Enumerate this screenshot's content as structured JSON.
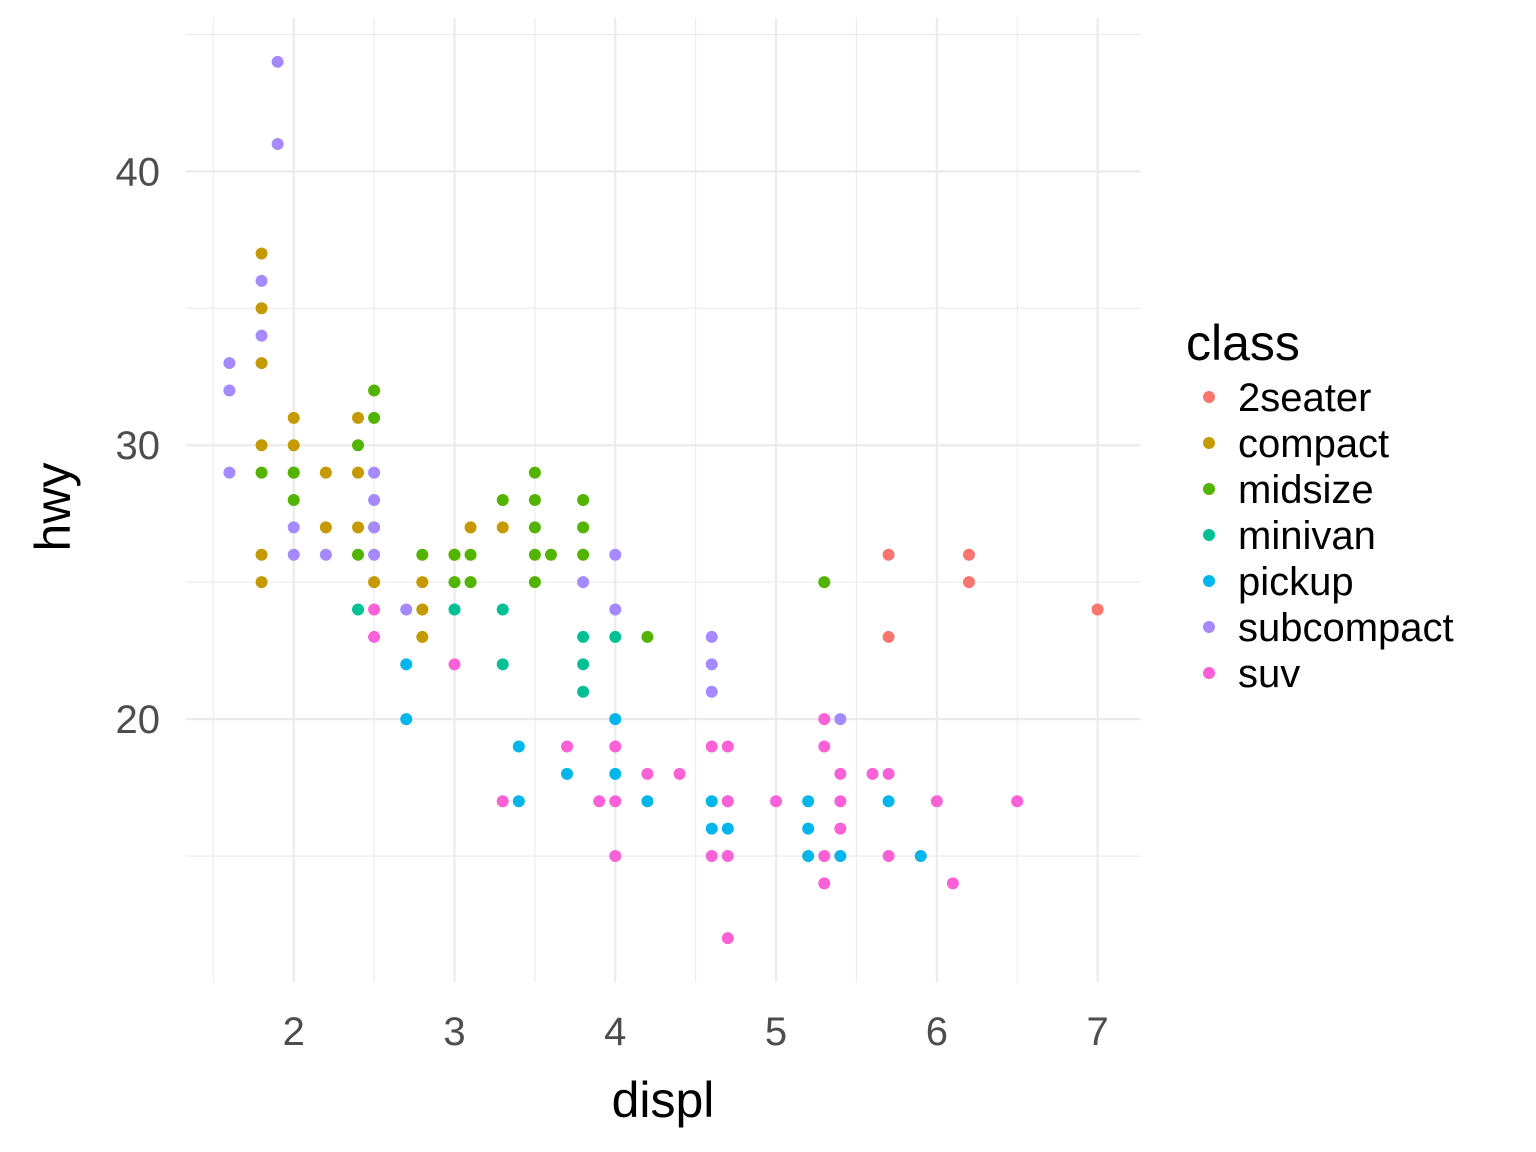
{
  "chart_data": {
    "type": "scatter",
    "title": "",
    "xlabel": "displ",
    "ylabel": "hwy",
    "xlim": [
      1.33,
      7.27
    ],
    "ylim": [
      10.4,
      45.6
    ],
    "x_major_ticks": [
      2,
      3,
      4,
      5,
      6,
      7
    ],
    "x_tick_labels": [
      "2",
      "3",
      "4",
      "5",
      "6",
      "7"
    ],
    "x_minor_ticks": [
      1.5,
      2.5,
      3.5,
      4.5,
      5.5,
      6.5
    ],
    "y_major_ticks": [
      20,
      30,
      40
    ],
    "y_tick_labels": [
      "20",
      "30",
      "40"
    ],
    "y_minor_ticks": [
      15,
      25,
      35,
      45
    ],
    "grid": true,
    "legend": {
      "title": "class",
      "placement": "right"
    },
    "series": [
      {
        "name": "2seater",
        "color": "#F8766D",
        "x": [
          5.7,
          5.7,
          6.2,
          6.2,
          7.0
        ],
        "y": [
          26,
          23,
          26,
          25,
          24
        ]
      },
      {
        "name": "compact",
        "color": "#C49A00",
        "x": [
          1.8,
          1.8,
          1.8,
          1.8,
          1.8,
          1.8,
          2.0,
          2.0,
          2.0,
          2.2,
          2.2,
          2.4,
          2.4,
          2.4,
          2.5,
          2.5,
          2.8,
          2.8,
          2.8,
          3.0,
          3.1,
          3.3
        ],
        "y": [
          37,
          35,
          33,
          30,
          26,
          25,
          31,
          30,
          29,
          29,
          27,
          31,
          29,
          27,
          27,
          25,
          25,
          24,
          23,
          26,
          27,
          27
        ]
      },
      {
        "name": "midsize",
        "color": "#53B400",
        "x": [
          1.8,
          2.0,
          2.0,
          2.4,
          2.4,
          2.5,
          2.5,
          2.8,
          3.0,
          3.0,
          3.1,
          3.1,
          3.3,
          3.5,
          3.5,
          3.5,
          3.5,
          3.5,
          3.6,
          3.8,
          3.8,
          3.8,
          4.2,
          5.3
        ],
        "y": [
          29,
          29,
          28,
          30,
          26,
          32,
          31,
          26,
          26,
          25,
          26,
          25,
          28,
          29,
          28,
          27,
          26,
          25,
          26,
          28,
          27,
          26,
          23,
          25
        ]
      },
      {
        "name": "minivan",
        "color": "#00C094",
        "x": [
          2.4,
          3.0,
          3.3,
          3.3,
          3.8,
          3.8,
          3.8,
          4.0
        ],
        "y": [
          24,
          24,
          24,
          22,
          23,
          22,
          21,
          23
        ]
      },
      {
        "name": "pickup",
        "color": "#00B6EB",
        "x": [
          2.7,
          2.7,
          3.4,
          3.4,
          3.7,
          4.0,
          4.0,
          4.2,
          4.6,
          4.6,
          4.7,
          4.7,
          5.2,
          5.2,
          5.2,
          5.4,
          5.7,
          5.9
        ],
        "y": [
          22,
          20,
          19,
          17,
          18,
          20,
          18,
          17,
          17,
          16,
          17,
          16,
          17,
          16,
          15,
          15,
          17,
          15
        ]
      },
      {
        "name": "subcompact",
        "color": "#A58AFF",
        "x": [
          1.6,
          1.6,
          1.6,
          1.8,
          1.8,
          1.9,
          1.9,
          2.0,
          2.0,
          2.2,
          2.5,
          2.5,
          2.5,
          2.5,
          2.7,
          3.8,
          4.0,
          4.0,
          4.6,
          4.6,
          4.6,
          5.4
        ],
        "y": [
          33,
          32,
          29,
          36,
          34,
          44,
          41,
          27,
          26,
          26,
          29,
          28,
          27,
          26,
          24,
          25,
          26,
          24,
          23,
          22,
          21,
          20
        ]
      },
      {
        "name": "suv",
        "color": "#FB61D7",
        "x": [
          2.5,
          2.5,
          3.0,
          3.3,
          3.7,
          3.9,
          4.0,
          4.0,
          4.0,
          4.2,
          4.4,
          4.6,
          4.6,
          4.7,
          4.7,
          4.7,
          4.7,
          5.0,
          5.3,
          5.3,
          5.3,
          5.3,
          5.4,
          5.4,
          5.4,
          5.6,
          5.7,
          5.7,
          6.0,
          6.1,
          6.5
        ],
        "y": [
          24,
          23,
          22,
          17,
          19,
          17,
          19,
          17,
          15,
          18,
          18,
          19,
          15,
          19,
          17,
          15,
          12,
          17,
          20,
          19,
          15,
          14,
          18,
          17,
          16,
          18,
          18,
          15,
          17,
          14,
          17
        ]
      }
    ]
  }
}
